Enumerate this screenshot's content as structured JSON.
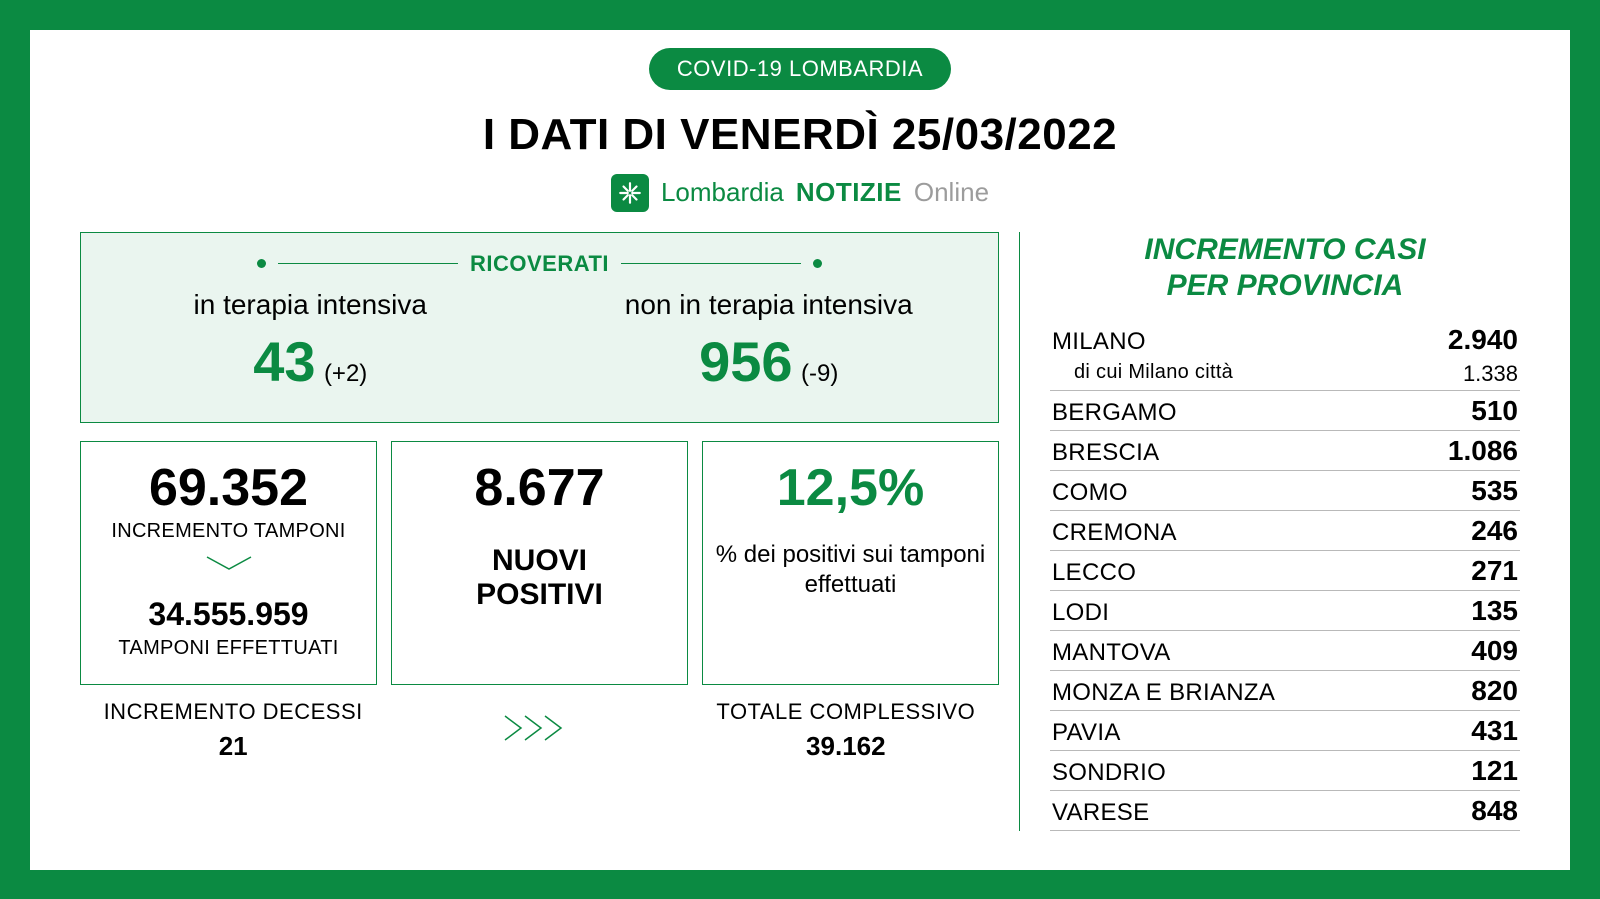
{
  "colors": {
    "brand_green": "#0b8a42",
    "light_green_bg": "#eaf5ef",
    "white": "#ffffff",
    "black": "#000000",
    "divider_gray": "#b9b9b9",
    "gray_text": "#9c9c9c"
  },
  "header": {
    "badge": "COVID-19 LOMBARDIA",
    "title": "I DATI DI VENERDÌ 25/03/2022",
    "logo_lombardia": "Lombardia",
    "logo_notizie": "NOTIZIE",
    "logo_online": "Online"
  },
  "ricoverati": {
    "section_label": "RICOVERATI",
    "intensive": {
      "label": "in terapia intensiva",
      "value": "43",
      "delta": "(+2)"
    },
    "non_intensive": {
      "label": "non in terapia intensiva",
      "value": "956",
      "delta": "(-9)"
    }
  },
  "stats": {
    "tamponi": {
      "increment_value": "69.352",
      "increment_label": "INCREMENTO TAMPONI",
      "total_value": "34.555.959",
      "total_label": "TAMPONI EFFETTUATI"
    },
    "positivi": {
      "value": "8.677",
      "label": "NUOVI POSITIVI"
    },
    "percent": {
      "value": "12,5%",
      "label": "% dei positivi sui tamponi effettuati"
    }
  },
  "bottom": {
    "deaths_label": "INCREMENTO DECESSI",
    "deaths_value": "21",
    "total_label": "TOTALE COMPLESSIVO",
    "total_value": "39.162"
  },
  "provinces": {
    "title_line1": "INCREMENTO CASI",
    "title_line2": "PER PROVINCIA",
    "milano_sub_label": "di cui Milano città",
    "milano_sub_value": "1.338",
    "rows": [
      {
        "name": "MILANO",
        "value": "2.940",
        "has_sub": true
      },
      {
        "name": "BERGAMO",
        "value": "510"
      },
      {
        "name": "BRESCIA",
        "value": "1.086"
      },
      {
        "name": "COMO",
        "value": "535"
      },
      {
        "name": "CREMONA",
        "value": "246"
      },
      {
        "name": "LECCO",
        "value": "271"
      },
      {
        "name": "LODI",
        "value": "135"
      },
      {
        "name": "MANTOVA",
        "value": "409"
      },
      {
        "name": "MONZA E BRIANZA",
        "value": "820"
      },
      {
        "name": "PAVIA",
        "value": "431"
      },
      {
        "name": "SONDRIO",
        "value": "121"
      },
      {
        "name": "VARESE",
        "value": "848"
      }
    ]
  }
}
